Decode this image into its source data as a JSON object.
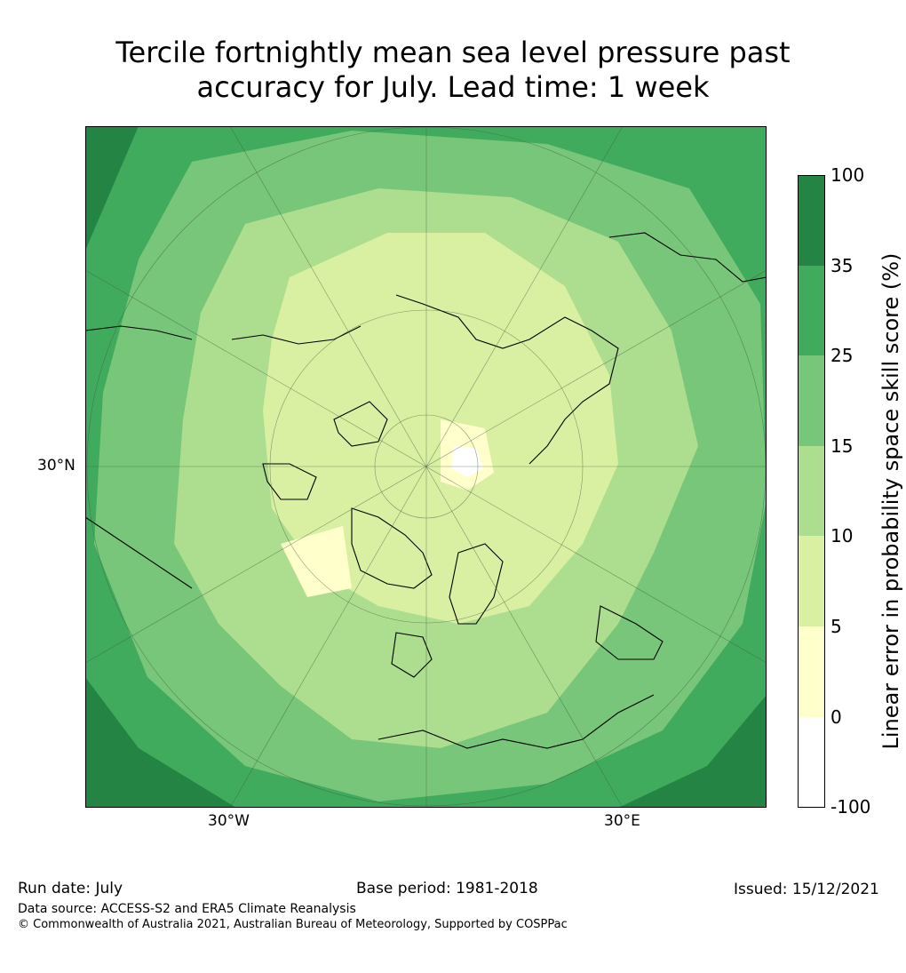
{
  "title_line1": "Tercile fortnightly mean sea level pressure past",
  "title_line2": "accuracy for July. Lead time: 1 week",
  "map": {
    "projection": "north polar stereographic",
    "lat_labels": [
      "30°N"
    ],
    "lon_labels": [
      "30°W",
      "30°E"
    ]
  },
  "colorbar": {
    "label": "Linear error in probability space skill score (%)",
    "ticks": [
      "100",
      "35",
      "25",
      "15",
      "10",
      "5",
      "0",
      "-100"
    ],
    "colors": [
      "#ffffff",
      "#ffffcc",
      "#d9f0a3",
      "#addd8e",
      "#78c679",
      "#41ab5d",
      "#238443"
    ]
  },
  "footer": {
    "run_date": "Run date: July",
    "base_period": "Base period: 1981-2018",
    "issued": "Issued: 15/12/2021",
    "data_source": "Data source: ACCESS-S2 and ERA5 Climate Reanalysis",
    "copyright": "© Commonwealth of Australia 2021, Australian Bureau of Meteorology, Supported by COSPPac"
  }
}
